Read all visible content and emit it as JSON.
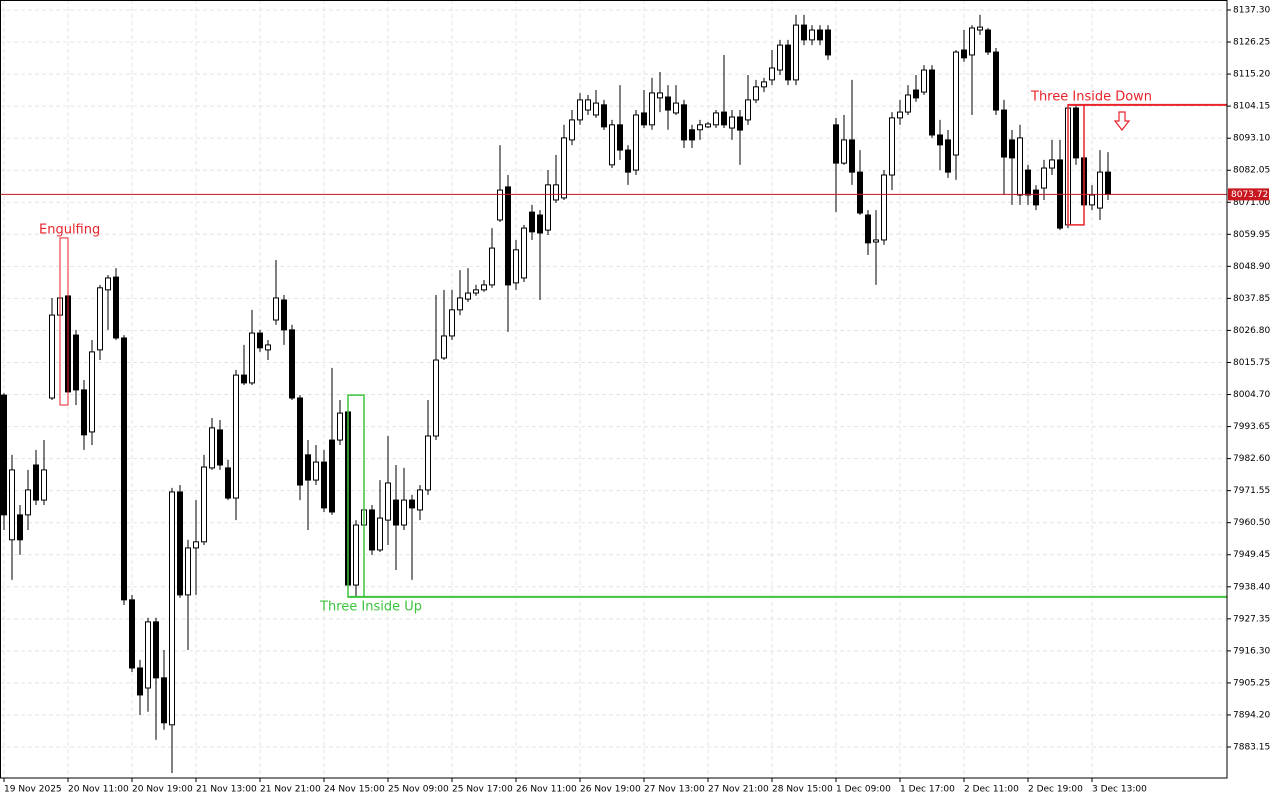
{
  "chart_data": {
    "type": "candlestick",
    "categories": [
      "19 Nov 2025",
      null,
      null,
      null,
      null,
      null,
      null,
      null,
      "20 Nov 11:00",
      null,
      null,
      null,
      null,
      null,
      null,
      null,
      "20 Nov 19:00",
      null,
      null,
      null,
      null,
      null,
      null,
      null,
      "21 Nov 13:00",
      null,
      null,
      null,
      null,
      null,
      null,
      null,
      "21 Nov 21:00",
      null,
      null,
      null,
      null,
      null,
      null,
      null,
      "24 Nov 15:00",
      null,
      null,
      null,
      null,
      null,
      null,
      null,
      "25 Nov 09:00",
      null,
      null,
      null,
      null,
      null,
      null,
      null,
      "25 Nov 17:00",
      null,
      null,
      null,
      null,
      null,
      null,
      null,
      "26 Nov 11:00",
      null,
      null,
      null,
      null,
      null,
      null,
      null,
      "26 Nov 19:00",
      null,
      null,
      null,
      null,
      null,
      null,
      null,
      "27 Nov 13:00",
      null,
      null,
      null,
      null,
      null,
      null,
      null,
      "27 Nov 21:00",
      null,
      null,
      null,
      null,
      null,
      null,
      null,
      "28 Nov 15:00",
      null,
      null,
      null,
      null,
      null,
      null,
      null,
      "1 Dec 09:00",
      null,
      null,
      null,
      null,
      null,
      null,
      null,
      "1 Dec 17:00",
      null,
      null,
      null,
      null,
      null,
      null,
      null,
      "2 Dec 11:00",
      null,
      null,
      null,
      null,
      null,
      null,
      null,
      "2 Dec 19:00",
      null,
      null,
      null,
      null,
      null,
      null,
      null,
      "3 Dec 13:00",
      null,
      null
    ],
    "open": [
      8004.5,
      7954.6,
      7963.2,
      7963.2,
      7980.4,
      7968.3,
      8003.5,
      8032.1,
      8038.7,
      8025.2,
      8006.3,
      7991.8,
      8020.1,
      8040.8,
      8045.2,
      8024.2,
      7933.9,
      7910.4,
      7903.5,
      7926.3,
      7907.0,
      7890.8,
      7971.1,
      7935.6,
      7951.8,
      7953.9,
      7979.4,
      7992.5,
      7979.4,
      7969.0,
      8011.4,
      8008.7,
      8025.9,
      8020.1,
      8030.4,
      8037.3,
      8027.0,
      8003.5,
      7983.9,
      7975.2,
      7981.4,
      7989.0,
      7989.0,
      7998.7,
      7939.0,
      7959.7,
      7964.9,
      7951.1,
      7961.4,
      7968.3,
      7959.7,
      7968.3,
      7964.9,
      7971.8,
      7990.4,
      8017.3,
      8024.9,
      8033.9,
      8037.6,
      8039.7,
      8040.8,
      8042.5,
      8064.9,
      8076.3,
      8043.2,
      8044.9,
      8067.6,
      8066.6,
      8061.4,
      8071.8,
      8072.5,
      8092.5,
      8099.4,
      8102.8,
      8101.1,
      8104.6,
      8083.9,
      8097.7,
      8089.0,
      8082.1,
      8101.8,
      8097.7,
      8107.0,
      8107.3,
      8101.8,
      8104.6,
      8096.0,
      8096.0,
      8097.0,
      8097.7,
      8102.1,
      8096.6,
      8100.4,
      8099.4,
      8106.3,
      8110.8,
      8113.2,
      8116.6,
      8125.2,
      8113.2,
      8132.1,
      8127.0,
      8130.4,
      8130.4,
      8097.7,
      8084.5,
      8092.5,
      8081.4,
      8066.6,
      8057.3,
      8058.0,
      8080.4,
      8100.1,
      8102.1,
      8109.7,
      8109.0,
      8116.6,
      8094.2,
      8092.5,
      8087.3,
      8123.5,
      8121.8,
      8130.4,
      8130.4,
      8122.8,
      8102.8,
      8092.5,
      8073.5,
      8082.1,
      8075.2,
      8075.9,
      8082.8,
      8085.6,
      8063.2,
      8103.5,
      8086.3,
      8070.1,
      8069.0,
      8081.4
    ],
    "high": [
      8005.2,
      7983.9,
      7966.6,
      7978.7,
      7985.6,
      7989.0,
      8038.0,
      8058.7,
      8040.8,
      8027.0,
      8009.7,
      8023.5,
      8042.5,
      8045.9,
      8048.3,
      8025.2,
      7935.6,
      7913.2,
      7927.7,
      7927.7,
      7916.6,
      7972.5,
      7973.5,
      7954.6,
      7968.3,
      7983.9,
      7996.6,
      7995.9,
      7982.2,
      8013.2,
      8021.8,
      8033.9,
      8027.0,
      8023.5,
      8051.1,
      8039.0,
      8028.7,
      8004.5,
      7989.0,
      7987.3,
      7985.6,
      8013.9,
      8002.8,
      8004.5,
      7961.4,
      7982.1,
      7966.6,
      7975.2,
      7990.4,
      7980.4,
      7979.4,
      7970.1,
      7973.5,
      8002.8,
      8039.0,
      8040.8,
      8040.8,
      8047.6,
      8048.3,
      8042.5,
      8044.2,
      8062.1,
      8090.7,
      8080.4,
      8058.0,
      8063.2,
      8070.1,
      8068.3,
      8082.1,
      8087.3,
      8097.7,
      8102.8,
      8108.7,
      8108.0,
      8109.7,
      8106.3,
      8099.4,
      8111.4,
      8090.7,
      8102.8,
      8109.7,
      8113.9,
      8115.9,
      8111.4,
      8111.4,
      8106.3,
      8097.7,
      8099.4,
      8098.7,
      8102.8,
      8121.8,
      8102.8,
      8102.8,
      8114.9,
      8113.2,
      8113.9,
      8123.5,
      8127.0,
      8127.0,
      8135.6,
      8135.6,
      8132.1,
      8132.1,
      8132.1,
      8100.1,
      8101.1,
      8113.2,
      8089.0,
      8068.3,
      8068.3,
      8082.1,
      8102.1,
      8106.3,
      8111.4,
      8114.9,
      8118.3,
      8118.3,
      8099.4,
      8095.9,
      8123.5,
      8130.4,
      8132.1,
      8135.6,
      8131.1,
      8124.2,
      8106.3,
      8095.9,
      8097.7,
      8083.9,
      8076.9,
      8085.6,
      8092.5,
      8092.5,
      8104.6,
      8104.6,
      8089.0,
      8076.9,
      8089.0,
      8088.3
    ],
    "low": [
      7958.0,
      7940.8,
      7949.4,
      7958.0,
      7966.6,
      7966.6,
      8002.8,
      8001.1,
      8002.8,
      8001.1,
      7985.6,
      7987.3,
      8016.6,
      8027.0,
      8023.5,
      7932.1,
      7909.0,
      7894.2,
      7895.3,
      7885.6,
      7889.1,
      7874.2,
      7934.6,
      7916.6,
      7935.6,
      7952.8,
      7978.7,
      7978.7,
      7968.3,
      7961.4,
      8008.0,
      8008.0,
      8019.4,
      8016.6,
      8028.7,
      8021.8,
      8002.8,
      7968.3,
      7958.0,
      7973.5,
      7964.2,
      7963.2,
      7987.3,
      7938.0,
      7934.9,
      7958.0,
      7949.4,
      7950.4,
      7952.8,
      7944.2,
      7958.0,
      7940.8,
      7961.4,
      7970.1,
      7989.0,
      8016.6,
      8023.5,
      8032.1,
      8036.6,
      8038.7,
      8040.1,
      8041.5,
      8064.2,
      8026.3,
      8040.8,
      8043.5,
      8058.0,
      8037.3,
      8059.7,
      8070.8,
      8071.8,
      8090.7,
      8097.7,
      8101.1,
      8100.1,
      8095.9,
      8082.8,
      8085.6,
      8077.0,
      8080.4,
      8096.6,
      8096.0,
      8102.1,
      8096.0,
      8101.1,
      8089.7,
      8089.7,
      8092.5,
      8096.6,
      8096.6,
      8096.6,
      8092.5,
      8083.9,
      8097.7,
      8105.2,
      8109.0,
      8111.4,
      8114.9,
      8111.4,
      8111.4,
      8125.2,
      8125.2,
      8125.2,
      8120.1,
      8067.6,
      8083.9,
      8077.0,
      8066.6,
      8052.8,
      8042.5,
      8056.3,
      8075.2,
      8097.7,
      8101.1,
      8105.6,
      8108.0,
      8093.2,
      8082.1,
      8079.4,
      8078.7,
      8119.4,
      8101.1,
      8128.7,
      8121.8,
      8101.1,
      8073.5,
      8070.1,
      8070.1,
      8070.1,
      8068.3,
      8071.8,
      8080.4,
      8061.4,
      8062.1,
      8083.9,
      8063.2,
      8068.3,
      8064.9,
      8071.8
    ],
    "close": [
      7963.2,
      7978.7,
      7954.6,
      7971.8,
      7968.3,
      7978.7,
      8032.1,
      8038.0,
      8005.6,
      8006.3,
      7990.8,
      8019.4,
      8041.5,
      8044.9,
      8024.2,
      7933.9,
      7910.4,
      7901.1,
      7926.3,
      7907.0,
      7891.5,
      7971.1,
      7935.6,
      7951.8,
      7953.9,
      7979.7,
      7993.2,
      7980.4,
      7969.0,
      8011.4,
      8008.7,
      8025.9,
      8020.8,
      8021.8,
      8038.0,
      8027.0,
      8003.5,
      7973.5,
      7975.2,
      7981.4,
      7965.6,
      7964.2,
      7998.3,
      7939.0,
      7959.7,
      7964.9,
      7951.1,
      7962.1,
      7974.2,
      7959.7,
      7968.3,
      7965.6,
      7971.8,
      7990.4,
      8016.6,
      8024.9,
      8033.9,
      8038.0,
      8039.7,
      8040.8,
      8042.5,
      8055.2,
      8075.2,
      8042.5,
      8054.6,
      8062.1,
      8060.8,
      8060.4,
      8077.0,
      8077.0,
      8093.2,
      8099.4,
      8106.3,
      8106.3,
      8105.2,
      8097.0,
      8097.7,
      8089.0,
      8081.4,
      8101.1,
      8097.7,
      8108.7,
      8108.7,
      8102.8,
      8105.2,
      8092.5,
      8092.5,
      8097.7,
      8098.0,
      8101.8,
      8097.7,
      8100.4,
      8095.9,
      8106.3,
      8110.8,
      8112.5,
      8117.3,
      8125.2,
      8113.2,
      8132.1,
      8127.0,
      8130.4,
      8127.0,
      8121.8,
      8084.5,
      8092.5,
      8081.4,
      8067.3,
      8057.0,
      8058.0,
      8080.4,
      8100.1,
      8102.1,
      8108.0,
      8107.0,
      8116.6,
      8094.2,
      8090.8,
      8081.4,
      8122.8,
      8120.8,
      8131.1,
      8131.4,
      8122.8,
      8102.8,
      8086.6,
      8086.3,
      8093.2,
      8073.5,
      8070.1,
      8082.8,
      8085.6,
      8062.1,
      8103.5,
      8086.3,
      8070.1,
      8073.5,
      8081.4,
      8073.72
    ],
    "up_color": "#ffffff",
    "down_color": "#000000",
    "current_price": 8073.72,
    "current_price_color": "#c8171e",
    "ylim": [
      7872.46,
      8140.75
    ],
    "yticks": [
      {
        "value": 8137.3,
        "label": "8137.30"
      },
      8126.25,
      {
        "value": 8115.2,
        "label": "8115.20"
      },
      8104.15,
      {
        "value": 8093.1,
        "label": "8093.10"
      },
      8082.05,
      {
        "value": 8071,
        "label": "8071.00"
      },
      8059.95,
      {
        "value": 8048.9,
        "label": "8048.90"
      },
      8037.85,
      {
        "value": 8026.8,
        "label": "8026.80"
      },
      8015.75,
      {
        "value": 8004.7,
        "label": "8004.70"
      },
      7993.65,
      {
        "value": 7982.6,
        "label": "7982.60"
      },
      7971.55,
      {
        "value": 7960.5,
        "label": "7960.50"
      },
      7949.45,
      {
        "value": 7938.4,
        "label": "7938.40"
      },
      7927.35,
      {
        "value": 7916.3,
        "label": "7916.30"
      },
      7905.25,
      {
        "value": 7894.2,
        "label": "7894.20"
      },
      7883.15
    ],
    "grid": true,
    "annotations": [
      {
        "text": "Engulfing",
        "color": "#e8232a"
      },
      {
        "text": "Three Inside Up",
        "color": "#3cc43c"
      },
      {
        "text": "Three Inside Down",
        "color": "#e8232a"
      }
    ]
  }
}
